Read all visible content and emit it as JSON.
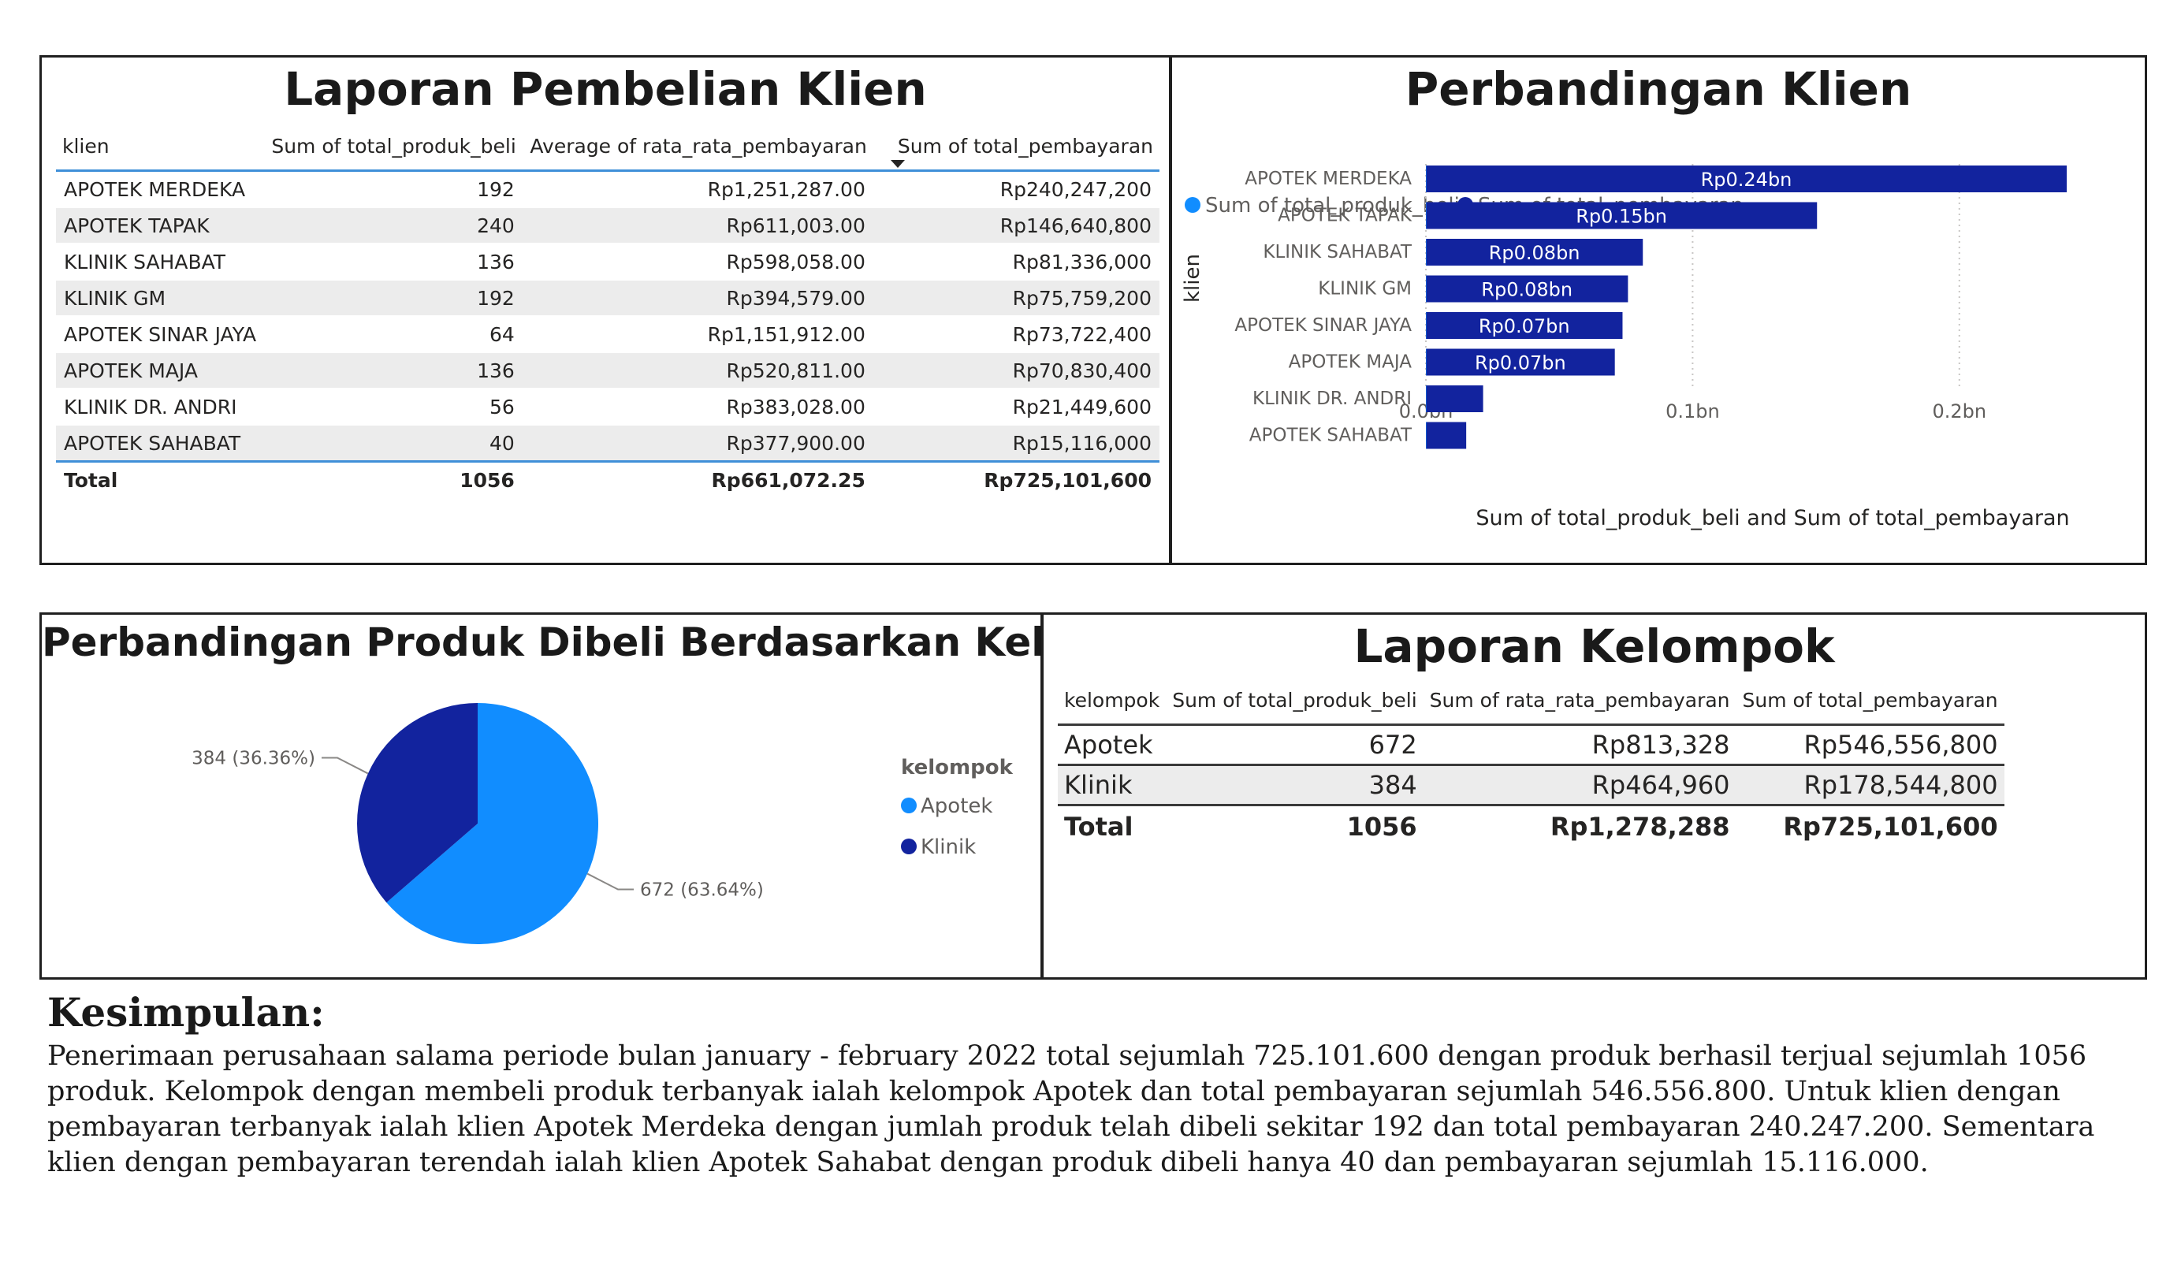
{
  "panel1": {
    "title": "Laporan Pembelian Klien",
    "headers": [
      "klien",
      "Sum of total_produk_beli",
      "Average of rata_rata_pembayaran",
      "Sum of total_pembayaran"
    ],
    "rows": [
      [
        "APOTEK MERDEKA",
        "192",
        "Rp1,251,287.00",
        "Rp240,247,200"
      ],
      [
        "APOTEK TAPAK",
        "240",
        "Rp611,003.00",
        "Rp146,640,800"
      ],
      [
        "KLINIK SAHABAT",
        "136",
        "Rp598,058.00",
        "Rp81,336,000"
      ],
      [
        "KLINIK GM",
        "192",
        "Rp394,579.00",
        "Rp75,759,200"
      ],
      [
        "APOTEK SINAR JAYA",
        "64",
        "Rp1,151,912.00",
        "Rp73,722,400"
      ],
      [
        "APOTEK MAJA",
        "136",
        "Rp520,811.00",
        "Rp70,830,400"
      ],
      [
        "KLINIK DR. ANDRI",
        "56",
        "Rp383,028.00",
        "Rp21,449,600"
      ],
      [
        "APOTEK SAHABAT",
        "40",
        "Rp377,900.00",
        "Rp15,116,000"
      ]
    ],
    "total": [
      "Total",
      "1056",
      "Rp661,072.25",
      "Rp725,101,600"
    ]
  },
  "panel2": {
    "title": "Perbandingan Klien",
    "legend": [
      "Sum of total_produk_beli",
      "Sum of total_pembayaran"
    ],
    "ylabel": "klien",
    "xlabel": "Sum of total_produk_beli and Sum of total_pembayaran",
    "x_ticks": [
      "0.0bn",
      "0.1bn",
      "0.2bn"
    ]
  },
  "panel3": {
    "title": "Perbandingan Produk Dibeli Berdasarkan Kelompok",
    "legend_title": "kelompok"
  },
  "panel4": {
    "title": "Laporan Kelompok",
    "headers": [
      "kelompok",
      "Sum of total_produk_beli",
      "Sum of rata_rata_pembayaran",
      "Sum of total_pembayaran"
    ],
    "rows": [
      [
        "Apotek",
        "672",
        "Rp813,328",
        "Rp546,556,800"
      ],
      [
        "Klinik",
        "384",
        "Rp464,960",
        "Rp178,544,800"
      ]
    ],
    "total": [
      "Total",
      "1056",
      "Rp1,278,288",
      "Rp725,101,600"
    ]
  },
  "conclusion": {
    "title": "Kesimpulan:",
    "text": "Penerimaan perusahaan salama periode bulan january - february 2022 total sejumlah 725.101.600 dengan produk berhasil terjual sejumlah 1056 produk. Kelompok dengan membeli produk terbanyak ialah kelompok Apotek dan total pembayaran sejumlah 546.556.800. Untuk klien dengan pembayaran terbanyak ialah klien  Apotek Merdeka dengan jumlah produk telah dibeli sekitar 192 dan total pembayaran 240.247.200. Sementara klien dengan pembayaran terendah ialah klien Apotek Sahabat dengan produk dibeli hanya 40 dan pembayaran sejumlah 15.116.000."
  },
  "colors": {
    "light_blue": "#118dff",
    "dark_blue": "#12239e",
    "table_accent": "#3f8fd8"
  },
  "chart_data": [
    {
      "type": "bar",
      "orientation": "horizontal",
      "title": "Perbandingan Klien",
      "categories": [
        "APOTEK MERDEKA",
        "APOTEK TAPAK",
        "KLINIK SAHABAT",
        "KLINIK GM",
        "APOTEK SINAR JAYA",
        "APOTEK MAJA",
        "KLINIK DR. ANDRI",
        "APOTEK SAHABAT"
      ],
      "series": [
        {
          "name": "Sum of total_produk_beli",
          "values": [
            192,
            240,
            136,
            192,
            64,
            136,
            56,
            40
          ]
        },
        {
          "name": "Sum of total_pembayaran",
          "values": [
            240247200,
            146640800,
            81336000,
            75759200,
            73722400,
            70830400,
            21449600,
            15116000
          ]
        }
      ],
      "data_labels": [
        "Rp0.24bn",
        "Rp0.15bn",
        "Rp0.08bn",
        "Rp0.08bn",
        "Rp0.07bn",
        "Rp0.07bn",
        "",
        ""
      ],
      "xlabel": "Sum of total_produk_beli and Sum of total_pembayaran",
      "ylabel": "klien",
      "xlim": [
        0,
        250000000
      ],
      "x_ticks": [
        "0.0bn",
        "0.1bn",
        "0.2bn"
      ],
      "legend_position": "top-left",
      "grid": true
    },
    {
      "type": "pie",
      "title": "Perbandingan Produk Dibeli Berdasarkan Kelompok",
      "legend_title": "kelompok",
      "categories": [
        "Apotek",
        "Klinik"
      ],
      "values": [
        672,
        384
      ],
      "labels": [
        "672 (63.64%)",
        "384 (36.36%)"
      ],
      "legend_position": "right"
    }
  ]
}
